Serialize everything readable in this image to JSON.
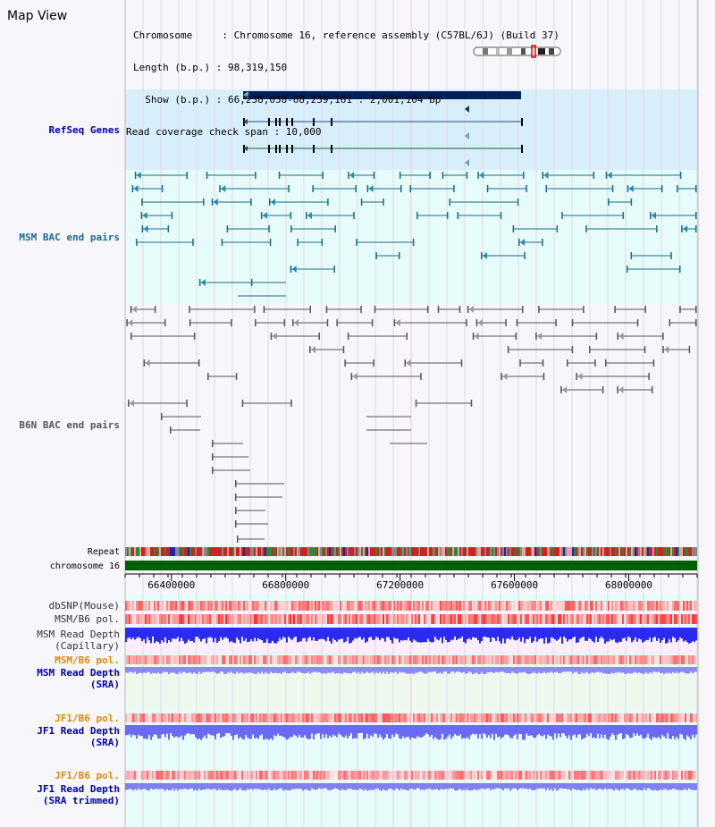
{
  "title": "Map View",
  "info": {
    "chromosome": "Chromosome     : Chromosome 16, reference assembly (C57BL/6J) (Build 37)",
    "length": "Length (b.p.) : 98,319,150",
    "show": "  Show (b.p.) : 66,238,058-68,239,161 : 2,001,104 bp",
    "span": "Read coverage check span : 10,000"
  },
  "tracks": {
    "refseq": "RefSeq Genes",
    "msm_bac": "MSM BAC end pairs",
    "b6n_bac": "B6N BAC end pairs",
    "repeat": "Repeat",
    "chromosome": "chromosome 16",
    "dbsnp": "dbSNP(Mouse)",
    "msm_b6_pol": "MSM/B6 pol.",
    "msm_depth_cap": "MSM Read Depth\n(Capillary)",
    "msm_b6_pol2": "MSM/B6 pol.",
    "msm_depth_sra": "MSM Read Depth\n(SRA)",
    "jf1_b6_pol": "JF1/B6 pol.",
    "jf1_depth_sra": "JF1 Read Depth\n(SRA)",
    "jf1_b6_pol2": "JF1/B6 pol.",
    "jf1_depth_trim": "JF1 Read Depth\n(SRA trimmed)"
  },
  "axis": {
    "min_bp": 66238058,
    "max_bp": 68239161,
    "ticks": [
      "66400000",
      "66800000",
      "67200000",
      "67600000",
      "68000000"
    ],
    "tick_values": [
      66400000,
      66800000,
      67200000,
      67600000,
      68000000
    ]
  },
  "colors": {
    "refseq_bg": "#d9eefb",
    "msm_bg": "#e7fbfb",
    "b6n_bg": "#f6f6fb",
    "gene_main": "#00205c",
    "msm_pair": "#136d8a",
    "b6n_pair": "#555555",
    "chromosome": "#006000",
    "snp": "#ee3333",
    "depth_blue": "#2a2af0",
    "depth_sra": "#8a8af5",
    "label_blue": "#0000aa",
    "label_orange": "#e08a00",
    "label_teal": "#1e6a8a"
  }
}
